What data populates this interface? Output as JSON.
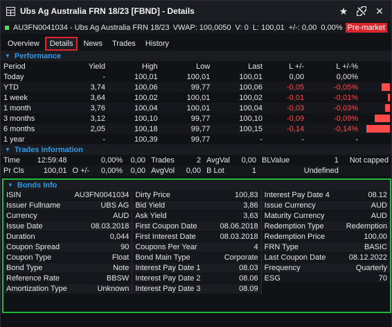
{
  "window": {
    "title": "Ubs Ag Australia FRN 18/23 [FBND] - Details"
  },
  "quote": {
    "isin_name": "AU3FN0041034 - Ubs Ag Australia FRN 18/23",
    "vwap": "VWAP: 100,0050",
    "v": "V: 0",
    "l": "L: 100,01",
    "change": "+/-: 0,00",
    "change_pct": "0,00%",
    "status": "Pre-market"
  },
  "tabs": [
    "Overview",
    "Details",
    "News",
    "Trades",
    "History"
  ],
  "performance": {
    "header": "Performance",
    "columns": [
      "Period",
      "Yield",
      "High",
      "Low",
      "Last",
      "L +/-",
      "L +/-%"
    ],
    "rows": [
      {
        "period": "Today",
        "yield": "-",
        "high": "100,01",
        "low": "100,01",
        "last": "100,01",
        "chg": "0,00",
        "chg_pct": "0,00%",
        "bar": 0,
        "neg": false
      },
      {
        "period": "YTD",
        "yield": "3,74",
        "high": "100,06",
        "low": "99,77",
        "last": "100,06",
        "chg": "-0,05",
        "chg_pct": "-0,05%",
        "bar": 0.05,
        "neg": true
      },
      {
        "period": "1 week",
        "yield": "3,64",
        "high": "100,02",
        "low": "100,01",
        "last": "100,02",
        "chg": "-0,01",
        "chg_pct": "-0,01%",
        "bar": 0.01,
        "neg": true
      },
      {
        "period": "1 month",
        "yield": "3,76",
        "high": "100,04",
        "low": "100,01",
        "last": "100,04",
        "chg": "-0,03",
        "chg_pct": "-0,03%",
        "bar": 0.03,
        "neg": true
      },
      {
        "period": "3 months",
        "yield": "3,12",
        "high": "100,10",
        "low": "99,77",
        "last": "100,10",
        "chg": "-0,09",
        "chg_pct": "-0,09%",
        "bar": 0.09,
        "neg": true
      },
      {
        "period": "6 months",
        "yield": "2,05",
        "high": "100,18",
        "low": "99,77",
        "last": "100,15",
        "chg": "-0,14",
        "chg_pct": "-0,14%",
        "bar": 0.14,
        "neg": true
      },
      {
        "period": "1 year",
        "yield": "-",
        "high": "100,39",
        "low": "99,77",
        "last": "-",
        "chg": "-",
        "chg_pct": "-",
        "bar": 0,
        "neg": false
      }
    ]
  },
  "trades_info": {
    "header": "Trades information",
    "row1": {
      "time_label": "Time",
      "time": "12:59:48",
      "o_label": "0,00%",
      "o_val": "0,00",
      "trades_label": "Trades",
      "trades": "2",
      "avgval_label": "AvgVal",
      "avgval": "0,00",
      "blvalue_label": "BLValue",
      "blvalue": "1",
      "notcapped": "Not capped"
    },
    "row2": {
      "prcls_label": "Pr Cls",
      "prcls": "100,01",
      "o_label": "O +/-",
      "o_pct": "0,00%",
      "o_val": "0,00",
      "avgvol_label": "AvgVol",
      "avgvol": "0,00",
      "blot_label": "B Lot",
      "blot": "1",
      "undefined": "Undefined"
    }
  },
  "bonds": {
    "header": "Bonds Info",
    "col1": [
      {
        "label": "ISIN",
        "value": "AU3FN0041034"
      },
      {
        "label": "Issuer Fullname",
        "value": "UBS AG"
      },
      {
        "label": "Currency",
        "value": "AUD"
      },
      {
        "label": "Issue Date",
        "value": "08.03.2018"
      },
      {
        "label": "Duration",
        "value": "0,044"
      },
      {
        "label": "Coupon Spread",
        "value": "90"
      },
      {
        "label": "Coupon Type",
        "value": "Float"
      },
      {
        "label": "Bond Type",
        "value": "Note"
      },
      {
        "label": "Reference Rate",
        "value": "BBSW"
      },
      {
        "label": "Amortization Type",
        "value": "Unknown"
      }
    ],
    "col2": [
      {
        "label": "Dirty Price",
        "value": "100,83"
      },
      {
        "label": "Bid Yield",
        "value": "3,86"
      },
      {
        "label": "Ask Yield",
        "value": "3,63"
      },
      {
        "label": "First Coupon Date",
        "value": "08.06.2018"
      },
      {
        "label": "First Interest Date",
        "value": "08.03.2018"
      },
      {
        "label": "Coupons Per Year",
        "value": "4"
      },
      {
        "label": "Bond Main Type",
        "value": "Corporate"
      },
      {
        "label": "Interest Pay Date 1",
        "value": "08.03"
      },
      {
        "label": "Interest Pay Date 2",
        "value": "08.06"
      },
      {
        "label": "Interest Pay Date 3",
        "value": "08.09"
      }
    ],
    "col3": [
      {
        "label": "Interest Pay Date 4",
        "value": "08.12"
      },
      {
        "label": "Issue Currency",
        "value": "AUD"
      },
      {
        "label": "Maturity Currency",
        "value": "AUD"
      },
      {
        "label": "Redemption Type",
        "value": "Redemption"
      },
      {
        "label": "Redemption Price",
        "value": "100,00"
      },
      {
        "label": "FRN Type",
        "value": "BASIC"
      },
      {
        "label": "Last Coupon Date",
        "value": "08.12.2022"
      },
      {
        "label": "Frequency",
        "value": "Quarterly"
      },
      {
        "label": "ESG",
        "value": "70"
      }
    ]
  },
  "colors": {
    "accent": "#2e9be6",
    "negative": "#ff4a4a",
    "active_tab_border": "#e0242c",
    "bonds_border": "#1fb83a",
    "premarket": "#d9262c"
  },
  "icons": [
    "table-icon",
    "star-icon",
    "unlink-icon",
    "close-icon"
  ]
}
